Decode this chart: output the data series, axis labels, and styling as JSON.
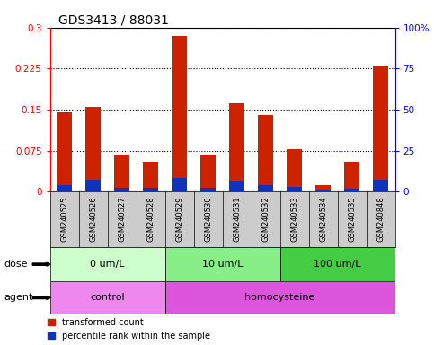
{
  "title": "GDS3413 / 88031",
  "samples": [
    "GSM240525",
    "GSM240526",
    "GSM240527",
    "GSM240528",
    "GSM240529",
    "GSM240530",
    "GSM240531",
    "GSM240532",
    "GSM240533",
    "GSM240534",
    "GSM240535",
    "GSM240848"
  ],
  "red_values": [
    0.145,
    0.155,
    0.068,
    0.055,
    0.285,
    0.068,
    0.162,
    0.14,
    0.078,
    0.012,
    0.055,
    0.228
  ],
  "blue_values": [
    0.012,
    0.022,
    0.007,
    0.006,
    0.025,
    0.006,
    0.02,
    0.012,
    0.008,
    0.003,
    0.005,
    0.022
  ],
  "ylim": [
    0,
    0.3
  ],
  "yticks": [
    0,
    0.075,
    0.15,
    0.225,
    0.3
  ],
  "ytick_labels": [
    "0",
    "0.075",
    "0.15",
    "0.225",
    "0.3"
  ],
  "y2lim": [
    0,
    100
  ],
  "y2ticks": [
    0,
    25,
    50,
    75,
    100
  ],
  "y2tick_labels": [
    "0",
    "25",
    "50",
    "75",
    "100%"
  ],
  "dose_groups": [
    {
      "label": "0 um/L",
      "start": 0,
      "end": 4,
      "color": "#ccffcc"
    },
    {
      "label": "10 um/L",
      "start": 4,
      "end": 8,
      "color": "#88ee88"
    },
    {
      "label": "100 um/L",
      "start": 8,
      "end": 12,
      "color": "#44cc44"
    }
  ],
  "agent_groups": [
    {
      "label": "control",
      "start": 0,
      "end": 4,
      "color": "#ee88ee"
    },
    {
      "label": "homocysteine",
      "start": 4,
      "end": 12,
      "color": "#dd55dd"
    }
  ],
  "dose_label": "dose",
  "agent_label": "agent",
  "legend_red": "transformed count",
  "legend_blue": "percentile rank within the sample",
  "red_color": "#cc2200",
  "blue_color": "#1133bb",
  "bar_width": 0.55,
  "tick_bg": "#cccccc"
}
